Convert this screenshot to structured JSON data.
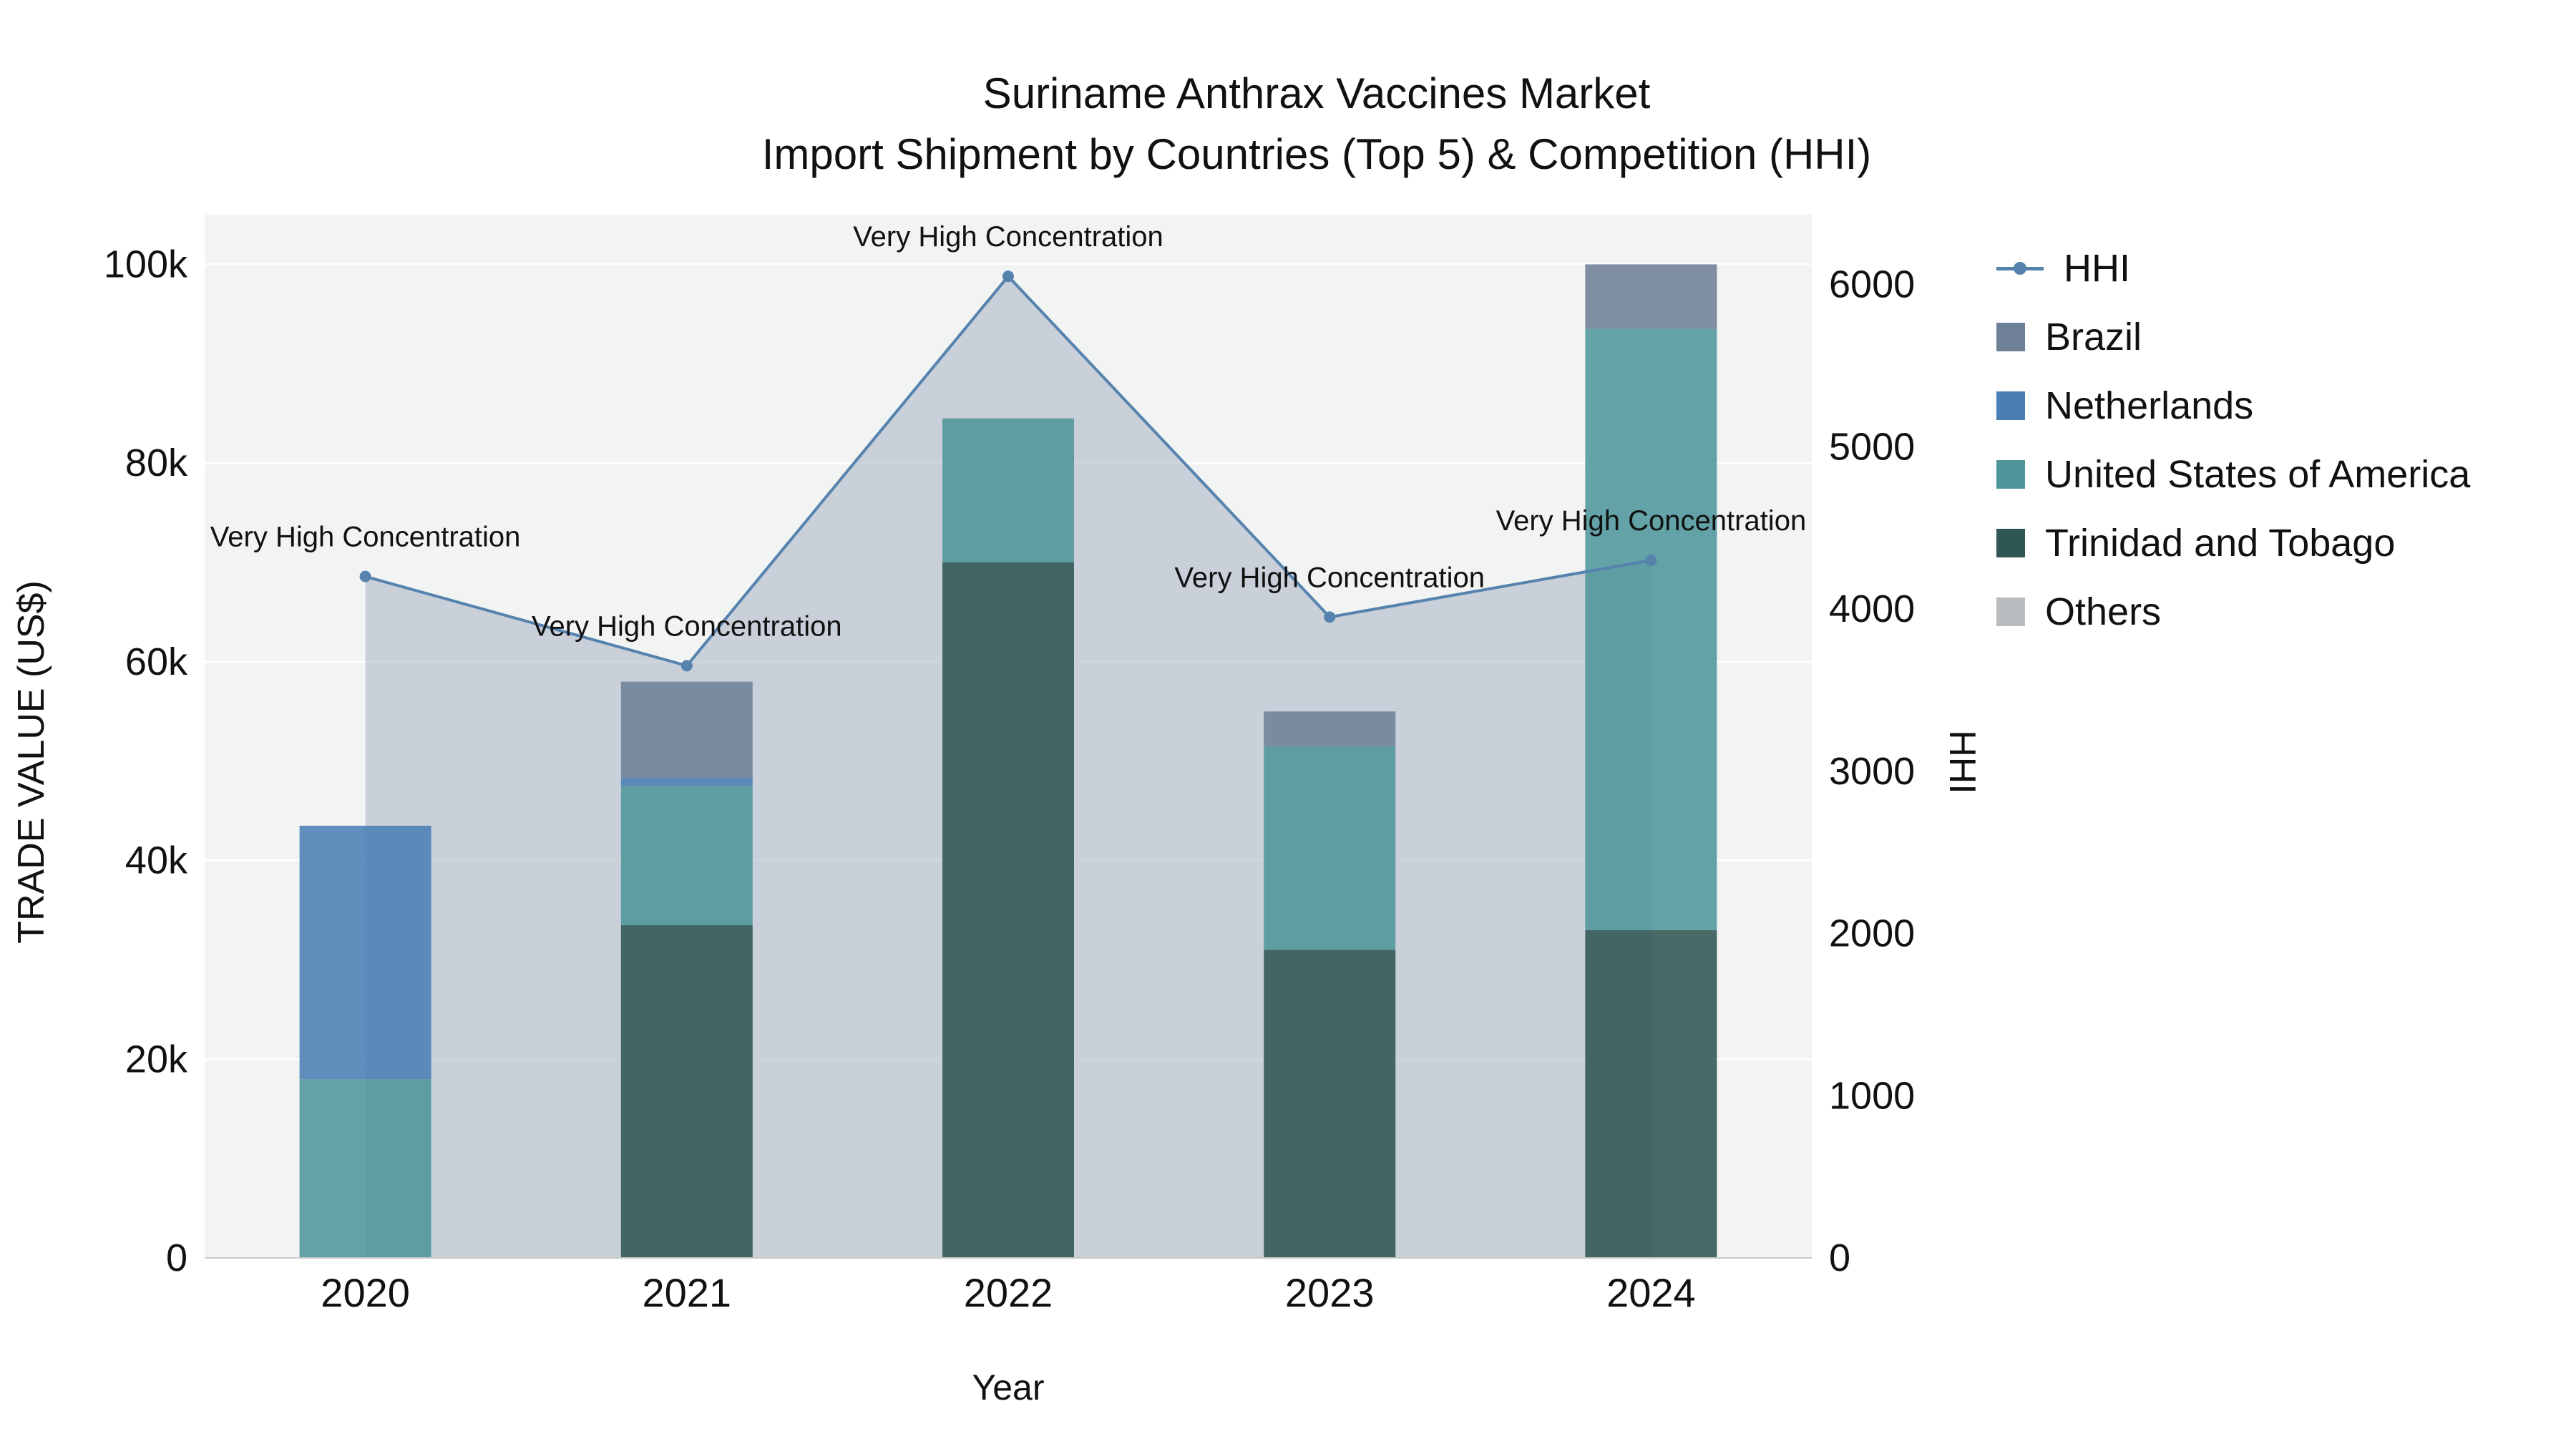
{
  "title": {
    "line1": "Suriname Anthrax Vaccines Market",
    "line2": "Import Shipment by Countries (Top 5) & Competition (HHI)"
  },
  "axes": {
    "x_title": "Year",
    "y_left_title": "TRADE VALUE (US$)",
    "y_right_title": "HHI",
    "y_left_max": 105000,
    "y_right_max": 6430,
    "y_left_ticks": {
      "values": [
        0,
        20000,
        40000,
        60000,
        80000,
        100000
      ],
      "labels": [
        "0",
        "20k",
        "40k",
        "60k",
        "80k",
        "100k"
      ]
    },
    "y_right_ticks": {
      "values": [
        0,
        1000,
        2000,
        3000,
        4000,
        5000,
        6000
      ],
      "labels": [
        "0",
        "1000",
        "2000",
        "3000",
        "4000",
        "5000",
        "6000"
      ]
    }
  },
  "chart_data": {
    "type": "bar",
    "subtype": "stacked-bar-with-line-overlay",
    "title": "Suriname Anthrax Vaccines Market - Import Shipment by Countries (Top 5) & Competition (HHI)",
    "xlabel": "Year",
    "ylabel_left": "TRADE VALUE (US$)",
    "ylabel_right": "HHI",
    "ylim_left": [
      0,
      105000
    ],
    "ylim_right": [
      0,
      6430
    ],
    "grid": true,
    "legend_position": "right",
    "categories": [
      "2020",
      "2021",
      "2022",
      "2023",
      "2024"
    ],
    "series": [
      {
        "name": "Trinidad and Tobago",
        "type": "bar",
        "color": "#2f5653",
        "values": [
          0,
          33500,
          70000,
          31000,
          33000
        ]
      },
      {
        "name": "United States of America",
        "type": "bar",
        "color": "#4f969b",
        "values": [
          18000,
          14000,
          14500,
          20500,
          60500
        ]
      },
      {
        "name": "Netherlands",
        "type": "bar",
        "color": "#4a7fb5",
        "values": [
          25500,
          800,
          0,
          0,
          0
        ]
      },
      {
        "name": "Brazil",
        "type": "bar",
        "color": "#6e8096",
        "values": [
          0,
          9700,
          0,
          3500,
          6500
        ]
      },
      {
        "name": "Others",
        "type": "bar",
        "color": "#b9bcbf",
        "values": [
          0,
          0,
          0,
          0,
          0
        ]
      },
      {
        "name": "HHI",
        "type": "line",
        "axis": "right",
        "color": "#5583ad",
        "area_fill": "rgba(168,178,194,0.55)",
        "values": [
          4200,
          3650,
          6050,
          3950,
          4300
        ]
      }
    ],
    "bar_totals": [
      43500,
      58000,
      84500,
      55000,
      100000
    ],
    "annotations": [
      "Very High Concentration",
      "Very High Concentration",
      "Very High Concentration",
      "Very High Concentration",
      "Very High Concentration"
    ]
  },
  "legend": {
    "items": [
      {
        "label": "HHI",
        "swatch": "line",
        "color": "#5583ad"
      },
      {
        "label": "Brazil",
        "swatch": "square",
        "color": "#6e8096"
      },
      {
        "label": "Netherlands",
        "swatch": "square",
        "color": "#4a7fb5"
      },
      {
        "label": "United States of America",
        "swatch": "square",
        "color": "#4f969b"
      },
      {
        "label": "Trinidad and Tobago",
        "swatch": "square",
        "color": "#2f5653"
      },
      {
        "label": "Others",
        "swatch": "square",
        "color": "#b9bcbf"
      }
    ]
  }
}
